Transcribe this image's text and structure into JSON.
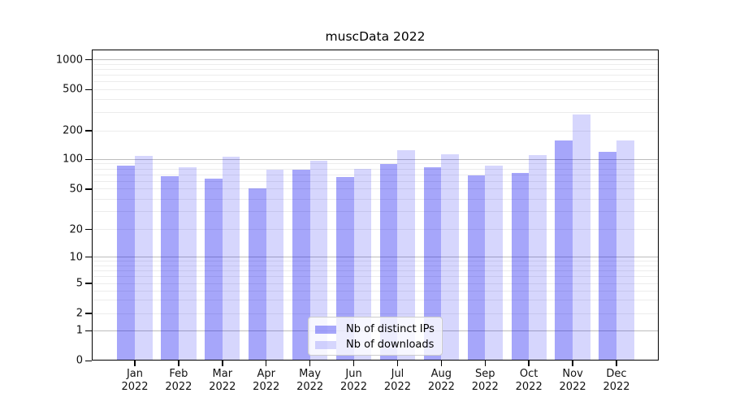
{
  "title": "muscData 2022",
  "chart_data": {
    "type": "bar",
    "title": "muscData 2022",
    "categories": [
      "Jan 2022",
      "Feb 2022",
      "Mar 2022",
      "Apr 2022",
      "May 2022",
      "Jun 2022",
      "Jul 2022",
      "Aug 2022",
      "Sep 2022",
      "Oct 2022",
      "Nov 2022",
      "Dec 2022"
    ],
    "series": [
      {
        "name": "Nb of distinct IPs",
        "color": "rgba(0,0,240,0.35)",
        "values": [
          87,
          67,
          64,
          51,
          78,
          66,
          90,
          84,
          69,
          73,
          159,
          119
        ]
      },
      {
        "name": "Nb of downloads",
        "color": "rgba(0,0,240,0.16)",
        "values": [
          108,
          84,
          106,
          79,
          97,
          80,
          124,
          113,
          86,
          111,
          285,
          159
        ]
      }
    ],
    "yscale": "symlog",
    "y_ticks": [
      0,
      1,
      2,
      5,
      10,
      20,
      50,
      100,
      200,
      500,
      1000
    ],
    "ylim": [
      0,
      1300
    ],
    "xlabel": "",
    "ylabel": "",
    "grid": "horizontal, major and minor log gridlines",
    "legend_position": "lower center inside plot"
  },
  "colors": {
    "bar_dark": "rgba(0,0,240,0.35)",
    "bar_light": "rgba(0,0,240,0.16)",
    "grid_major": "#bdbdbd",
    "grid_minor": "#ececec",
    "axis": "#000000"
  }
}
